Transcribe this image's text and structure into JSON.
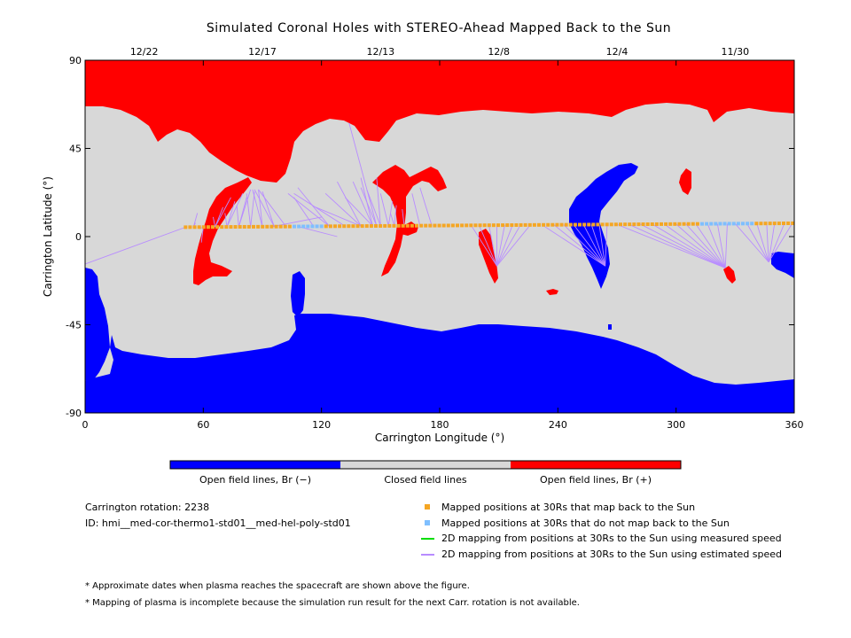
{
  "chart_data": {
    "type": "map",
    "title": "Simulated Coronal Holes with STEREO-Ahead Mapped Back to the Sun",
    "xlabel": "Carrington Longitude (°)",
    "ylabel": "Carrington Latitude (°)",
    "xlim": [
      0,
      360
    ],
    "ylim": [
      -90,
      90
    ],
    "x_ticks": [
      0,
      60,
      120,
      180,
      240,
      300,
      360
    ],
    "y_ticks": [
      -90,
      -45,
      0,
      45,
      90
    ],
    "top_axis_dates": [
      {
        "label": "12/22",
        "longitude": 30
      },
      {
        "label": "12/17",
        "longitude": 90
      },
      {
        "label": "12/13",
        "longitude": 150
      },
      {
        "label": "12/8",
        "longitude": 210
      },
      {
        "label": "12/4",
        "longitude": 270
      },
      {
        "label": "11/30",
        "longitude": 330
      }
    ],
    "colors": {
      "open_negative": "#0000ff",
      "closed": "#d8d8d8",
      "open_positive": "#ff0000",
      "mapped": "#f5a623",
      "unmapped": "#7fbfff",
      "measured_line": "#00dd00",
      "estimated_line": "#b88cff"
    },
    "colorbar": [
      {
        "label": "Open field lines, Br (−)",
        "color": "#0000ff"
      },
      {
        "label": "Closed field lines",
        "color": "#d8d8d8"
      },
      {
        "label": "Open field lines, Br (+)",
        "color": "#ff0000"
      }
    ],
    "spacecraft_track": {
      "lon_start": 51,
      "lon_end": 360,
      "lat_start": 4.8,
      "lat_end": 6.8,
      "unmapped_lon_ranges": [
        [
          105,
          122
        ],
        [
          312,
          340
        ]
      ]
    },
    "mapping_lines": [
      {
        "from": 51,
        "to": [
          [
            0,
            -14
          ]
        ]
      },
      {
        "from": 55,
        "to": [
          [
            56,
            7
          ],
          [
            57,
            12
          ]
        ]
      },
      {
        "from": 60,
        "to": [
          [
            59,
            -3
          ],
          [
            58,
            4
          ]
        ]
      },
      {
        "from": 66,
        "to": [
          [
            65,
            10
          ],
          [
            70,
            15
          ],
          [
            74,
            20
          ]
        ]
      },
      {
        "from": 72,
        "to": [
          [
            71,
            12
          ],
          [
            76,
            18
          ],
          [
            80,
            22
          ]
        ]
      },
      {
        "from": 78,
        "to": [
          [
            77,
            16
          ],
          [
            82,
            20
          ],
          [
            84,
            24
          ]
        ]
      },
      {
        "from": 84,
        "to": [
          [
            82,
            22
          ],
          [
            86,
            23
          ]
        ]
      },
      {
        "from": 90,
        "to": [
          [
            85,
            24
          ],
          [
            88,
            24
          ]
        ]
      },
      {
        "from": 96,
        "to": [
          [
            86,
            24
          ],
          [
            90,
            23
          ]
        ]
      },
      {
        "from": 102,
        "to": [
          [
            88,
            24
          ]
        ]
      },
      {
        "from": 116,
        "to": [
          [
            106,
            20
          ]
        ]
      },
      {
        "from": 124,
        "to": [
          [
            103,
            22
          ],
          [
            108,
            25
          ]
        ]
      },
      {
        "from": 132,
        "to": [
          [
            106,
            22
          ]
        ]
      },
      {
        "from": 108,
        "to": [
          [
            128,
            0
          ]
        ]
      },
      {
        "from": 95,
        "to": [
          [
            120,
            10
          ]
        ]
      },
      {
        "from": 140,
        "to": [
          [
            117,
            15
          ],
          [
            122,
            22
          ],
          [
            128,
            28
          ]
        ]
      },
      {
        "from": 146,
        "to": [
          [
            132,
            20
          ],
          [
            136,
            28
          ],
          [
            140,
            30
          ]
        ]
      },
      {
        "from": 148,
        "to": [
          [
            134,
            58
          ],
          [
            140,
            25
          ]
        ]
      },
      {
        "from": 150,
        "to": [
          [
            143,
            24
          ],
          [
            148,
            30
          ]
        ]
      },
      {
        "from": 154,
        "to": [
          [
            150,
            22
          ],
          [
            156,
            18
          ]
        ]
      },
      {
        "from": 157,
        "to": [
          [
            155,
            12
          ],
          [
            158,
            16
          ]
        ]
      },
      {
        "from": 162,
        "to": [
          [
            161,
            14
          ]
        ]
      },
      {
        "from": 170,
        "to": [
          [
            166,
            22
          ]
        ]
      },
      {
        "from": 176,
        "to": [
          [
            170,
            25
          ]
        ]
      },
      {
        "from": 196,
        "to": [
          [
            209,
            -15
          ]
        ]
      },
      {
        "from": 200,
        "to": [
          [
            209,
            -15
          ]
        ]
      },
      {
        "from": 205,
        "to": [
          [
            209,
            -15
          ]
        ]
      },
      {
        "from": 209,
        "to": [
          [
            209,
            -15
          ]
        ]
      },
      {
        "from": 213,
        "to": [
          [
            209,
            -15
          ]
        ]
      },
      {
        "from": 217,
        "to": [
          [
            209,
            -15
          ]
        ]
      },
      {
        "from": 221,
        "to": [
          [
            209,
            -15
          ]
        ]
      },
      {
        "from": 226,
        "to": [
          [
            209,
            -15
          ]
        ]
      },
      {
        "from": 232,
        "to": [
          [
            264,
            -15
          ]
        ]
      },
      {
        "from": 238,
        "to": [
          [
            264,
            -15
          ]
        ]
      },
      {
        "from": 243,
        "to": [
          [
            264,
            -15
          ]
        ]
      },
      {
        "from": 248,
        "to": [
          [
            264,
            -15
          ]
        ]
      },
      {
        "from": 253,
        "to": [
          [
            264,
            -15
          ]
        ]
      },
      {
        "from": 257,
        "to": [
          [
            264,
            -15
          ]
        ]
      },
      {
        "from": 261,
        "to": [
          [
            264,
            -15
          ]
        ]
      },
      {
        "from": 265,
        "to": [
          [
            264,
            -15
          ]
        ]
      },
      {
        "from": 270,
        "to": [
          [
            325,
            -16
          ]
        ]
      },
      {
        "from": 276,
        "to": [
          [
            325,
            -16
          ]
        ]
      },
      {
        "from": 282,
        "to": [
          [
            325,
            -16
          ]
        ]
      },
      {
        "from": 288,
        "to": [
          [
            325,
            -16
          ]
        ]
      },
      {
        "from": 294,
        "to": [
          [
            325,
            -16
          ]
        ]
      },
      {
        "from": 300,
        "to": [
          [
            325,
            -16
          ]
        ]
      },
      {
        "from": 305,
        "to": [
          [
            325,
            -16
          ]
        ]
      },
      {
        "from": 310,
        "to": [
          [
            325,
            -16
          ]
        ]
      },
      {
        "from": 316,
        "to": [
          [
            325,
            -16
          ]
        ]
      },
      {
        "from": 321,
        "to": [
          [
            325,
            -16
          ]
        ]
      },
      {
        "from": 326,
        "to": [
          [
            325,
            -16
          ]
        ]
      },
      {
        "from": 330,
        "to": [
          [
            347,
            -13
          ]
        ]
      },
      {
        "from": 336,
        "to": [
          [
            347,
            -13
          ]
        ]
      },
      {
        "from": 341,
        "to": [
          [
            347,
            -13
          ]
        ]
      },
      {
        "from": 346,
        "to": [
          [
            347,
            -13
          ]
        ]
      },
      {
        "from": 350,
        "to": [
          [
            347,
            -13
          ]
        ]
      },
      {
        "from": 355,
        "to": [
          [
            347,
            -13
          ]
        ]
      },
      {
        "from": 359,
        "to": [
          [
            347,
            -13
          ]
        ]
      }
    ],
    "grid": false,
    "legend_position": "below"
  },
  "info": {
    "rotation": "Carrington rotation: 2238",
    "id": "ID: hmi__med-cor-thermo1-std01__med-hel-poly-std01"
  },
  "legend": {
    "mapped": "Mapped positions at 30Rs that map back to the Sun",
    "unmapped": "Mapped positions at 30Rs that do not map back to the Sun",
    "measured": "2D mapping from positions at 30Rs to the Sun using measured speed",
    "estimated": "2D mapping from positions at 30Rs to the Sun using estimated speed"
  },
  "footnotes": {
    "dates": "* Approximate dates when plasma reaches the spacecraft are shown above the figure.",
    "incomplete": "* Mapping of plasma is incomplete because the simulation run result for the next Carr. rotation is not available."
  }
}
